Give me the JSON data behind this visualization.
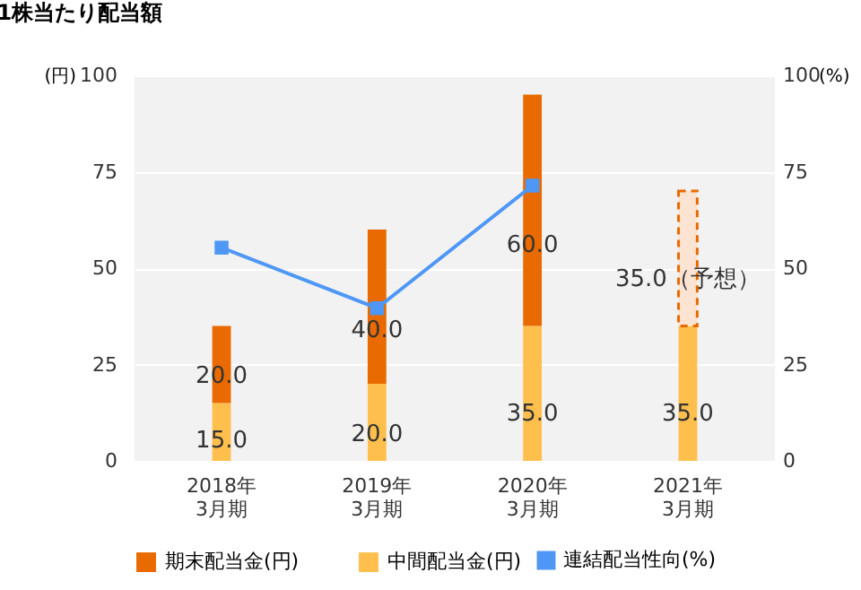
{
  "chart_data": {
    "type": "bar",
    "title": "1株当たり配当額",
    "stacked": true,
    "categories": [
      "2018年\n3月期",
      "2019年\n3月期",
      "2020年\n3月期",
      "2021年\n3月期"
    ],
    "series": [
      {
        "name": "中間配当金(円)",
        "color": "#ffbf4d",
        "values": [
          15.0,
          20.0,
          35.0,
          35.0
        ],
        "value_labels": [
          "15.0",
          "20.0",
          "35.0",
          "35.0"
        ]
      },
      {
        "name": "期末配当金(円)",
        "color": "#e86a00",
        "colors": [
          "#e86a00",
          "#e86a00",
          "#e86a00",
          "#fde4d2"
        ],
        "values": [
          20.0,
          40.0,
          60.0,
          35.0
        ],
        "value_labels": [
          "20.0",
          "40.0",
          "60.0",
          "35.0（予想）"
        ]
      },
      {
        "name": "連結配当性向(%)",
        "type": "line",
        "axis": "y2",
        "color": "#4e97f5",
        "marker": "square",
        "values": [
          55.3,
          39.6,
          71.4,
          null
        ]
      }
    ],
    "ylabel": "(円)",
    "y2label": "(%)",
    "ylim": [
      0,
      100
    ],
    "yticks": [
      0,
      25,
      50,
      75,
      100
    ],
    "y2lim": [
      0,
      100
    ],
    "y2ticks": [
      0,
      25,
      50,
      75,
      100
    ],
    "grid": "y",
    "legend": "bottom"
  }
}
